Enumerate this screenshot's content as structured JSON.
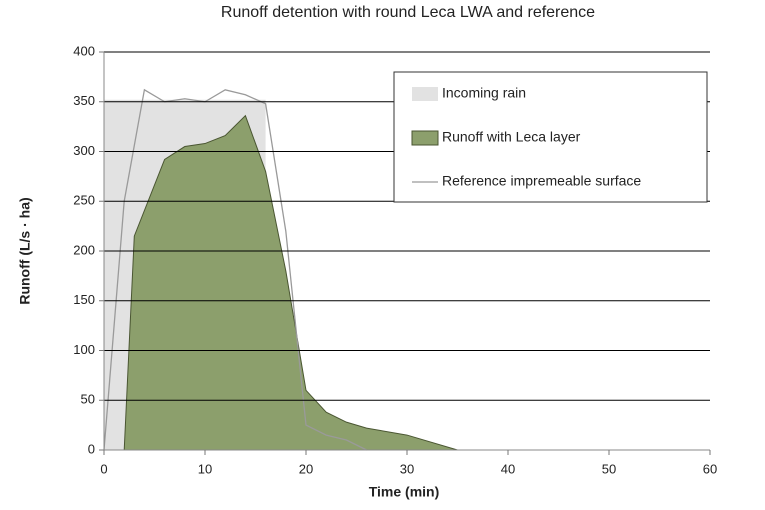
{
  "chart_data": {
    "type": "line",
    "title": "Runoff detention with round Leca LWA and reference",
    "x_label": "Time (min)",
    "y_label": "Runoff (L/s · ha)",
    "xlim": [
      0,
      60
    ],
    "xticks": [
      0,
      10,
      20,
      30,
      40,
      50,
      60
    ],
    "ylim": [
      0,
      400
    ],
    "yticks": [
      0,
      50,
      100,
      150,
      200,
      250,
      300,
      350,
      400
    ],
    "grid": true,
    "legend": "top-right",
    "series": [
      {
        "name": "Incoming rain",
        "type": "area",
        "color": "#e2e2e2",
        "x": [
          0,
          16
        ],
        "values": [
          352,
          352
        ]
      },
      {
        "name": "Runoff with Leca layer",
        "type": "area",
        "color": "#8c9f6c",
        "x": [
          2,
          3,
          6,
          8,
          10,
          12,
          14,
          16,
          18,
          20,
          22,
          24,
          26,
          30,
          35
        ],
        "values": [
          0,
          215,
          292,
          305,
          308,
          316,
          336,
          280,
          180,
          60,
          38,
          28,
          22,
          15,
          0
        ]
      },
      {
        "name": "Reference impremeable surface",
        "type": "line",
        "color": "#9a9a9a",
        "x": [
          0,
          2,
          4,
          6,
          8,
          10,
          12,
          14,
          16,
          18,
          20,
          22,
          24,
          26
        ],
        "values": [
          0,
          250,
          362,
          350,
          353,
          350,
          362,
          357,
          348,
          220,
          25,
          15,
          10,
          0
        ]
      }
    ]
  }
}
